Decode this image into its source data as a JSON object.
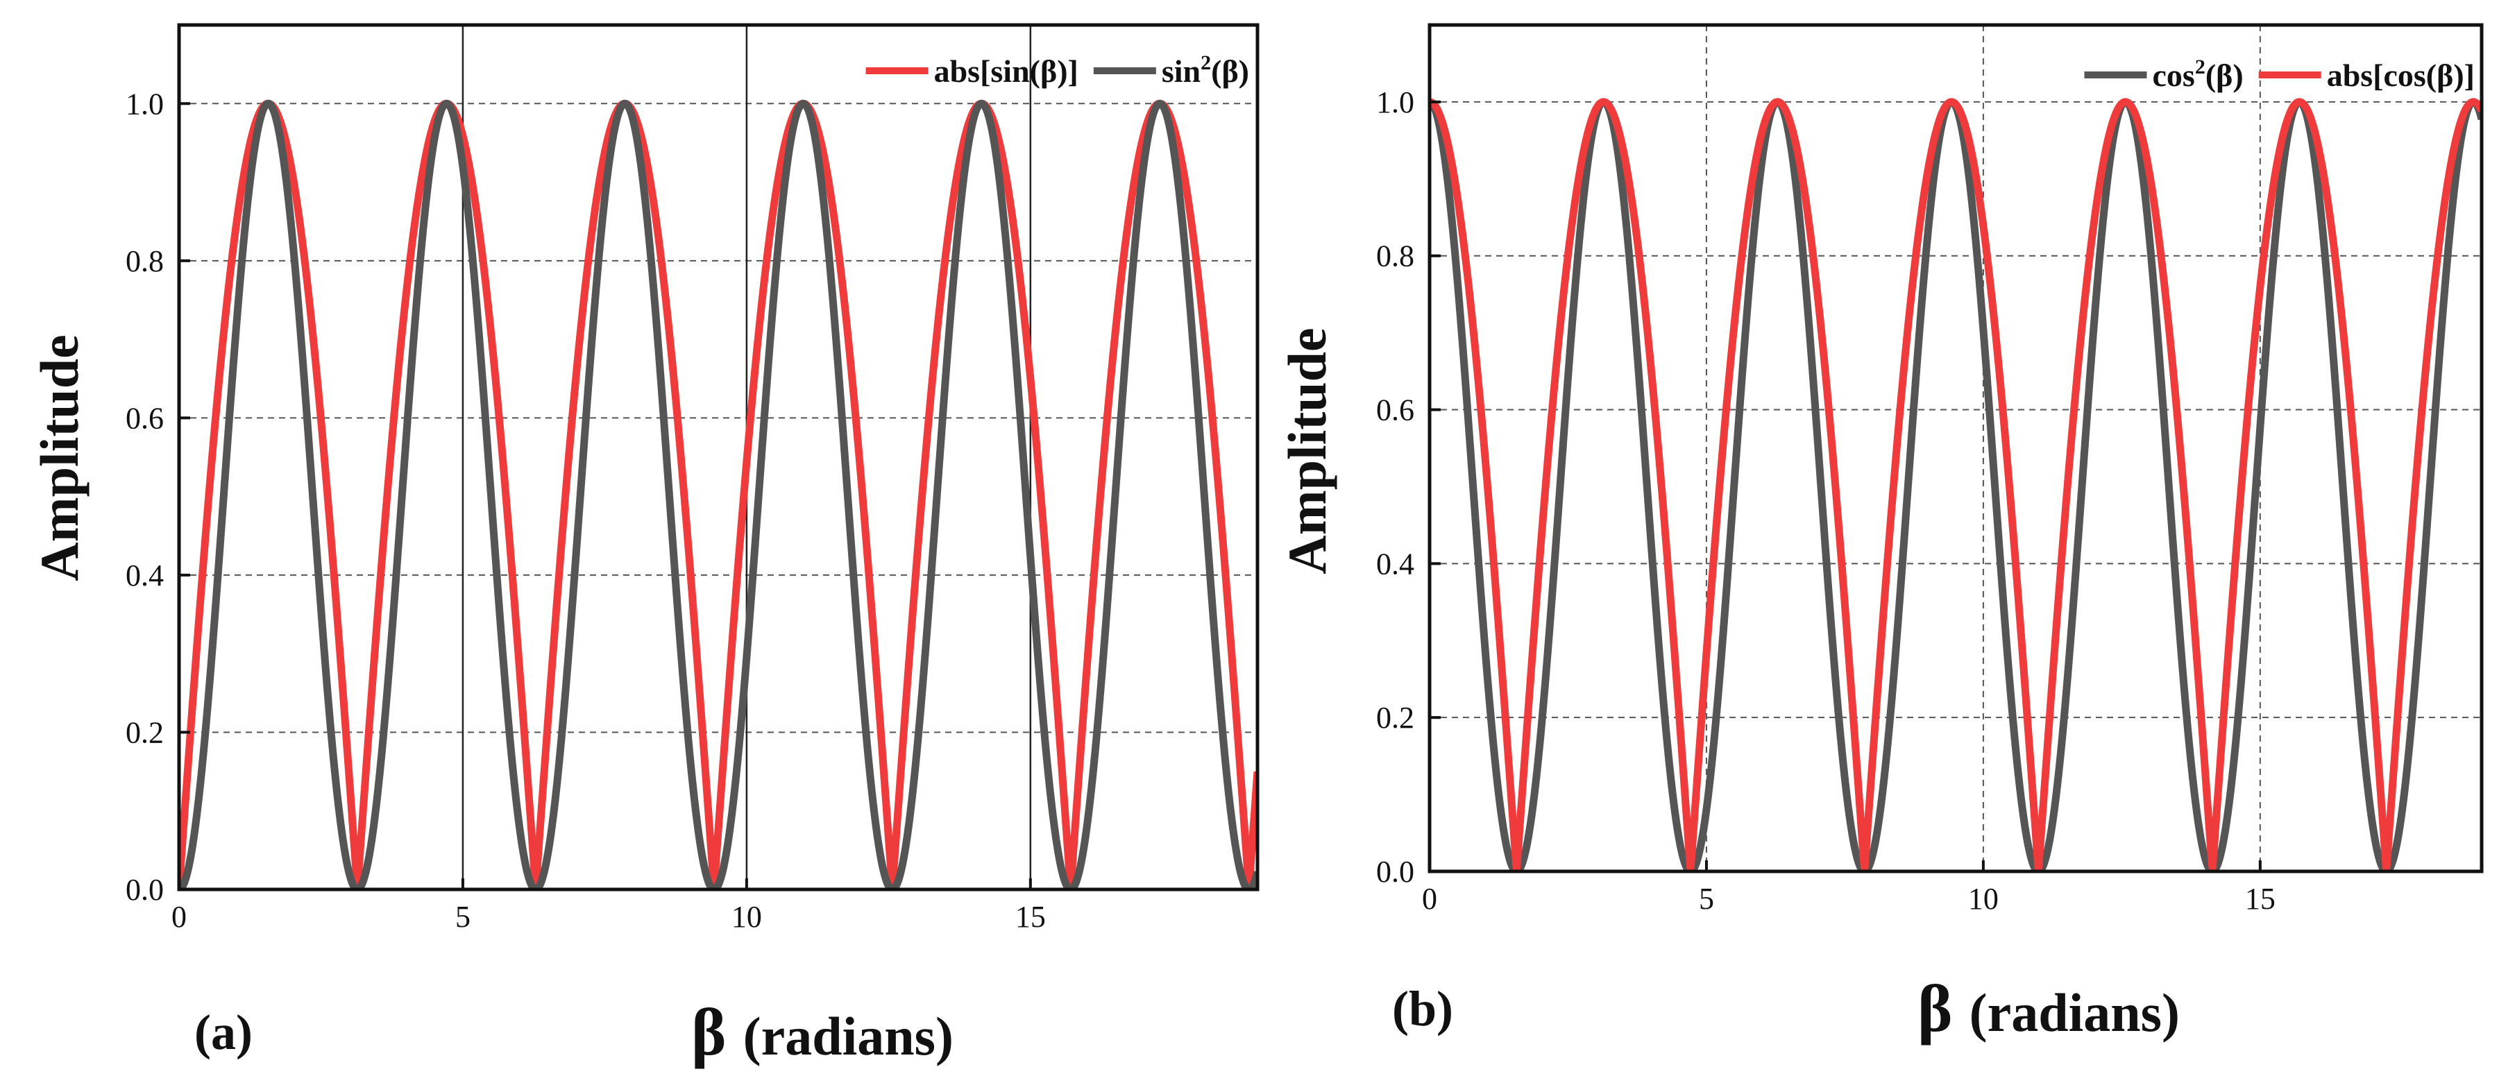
{
  "chart_data": [
    {
      "type": "line",
      "panel_label": "(a)",
      "xlabel_symbol": "β",
      "xlabel_unit": "(radians)",
      "ylabel": "Amplitude",
      "xlim": [
        0,
        19
      ],
      "ylim": [
        0,
        1.1
      ],
      "xticks": [
        0,
        5,
        10,
        15
      ],
      "xtick_labels": [
        "0",
        "5",
        "10",
        "15"
      ],
      "yticks": [
        0.0,
        0.2,
        0.4,
        0.6,
        0.8,
        1.0
      ],
      "ytick_labels": [
        "0.0",
        "0.2",
        "0.4",
        "0.6",
        "0.8",
        "1.0"
      ],
      "grid": "horizontal dashed; vertical lines at x = 5, 10, 15",
      "legend_position": "top-right",
      "series": [
        {
          "name": "abs[sin(β)]",
          "legend_base": "abs[sin(β)]",
          "legend_sup": "",
          "legend_tail": "",
          "function": "abs_sin",
          "color": "#ef3b3b",
          "x": [
            0,
            1.571,
            3.142,
            4.712,
            6.283,
            7.854,
            9.425,
            10.996,
            12.566,
            14.137,
            15.708,
            17.279,
            19.0
          ],
          "values": [
            0,
            1,
            0,
            1,
            0,
            1,
            0,
            1,
            0,
            1,
            0,
            1,
            0.15
          ]
        },
        {
          "name": "sin²(β)",
          "legend_base": "sin",
          "legend_sup": "2",
          "legend_tail": "(β)",
          "function": "sin_sq",
          "color": "#555555",
          "x": [
            0,
            1.571,
            3.142,
            4.712,
            6.283,
            7.854,
            9.425,
            10.996,
            12.566,
            14.137,
            15.708,
            17.279,
            19.0
          ],
          "values": [
            0,
            1,
            0,
            1,
            0,
            1,
            0,
            1,
            0,
            1,
            0,
            1,
            0.02
          ]
        }
      ]
    },
    {
      "type": "line",
      "panel_label": "(b)",
      "xlabel_symbol": "β",
      "xlabel_unit": "(radians)",
      "ylabel": "Amplitude",
      "xlim": [
        0,
        19
      ],
      "ylim": [
        0,
        1.1
      ],
      "xticks": [
        0,
        5,
        10,
        15
      ],
      "xtick_labels": [
        "0",
        "5",
        "10",
        "15"
      ],
      "yticks": [
        0.0,
        0.2,
        0.4,
        0.6,
        0.8,
        1.0
      ],
      "ytick_labels": [
        "0.0",
        "0.2",
        "0.4",
        "0.6",
        "0.8",
        "1.0"
      ],
      "grid": "horizontal dashed; vertical dashed at x = 5, 10, 15",
      "legend_position": "top-right",
      "series": [
        {
          "name": "cos²(β)",
          "legend_base": "cos",
          "legend_sup": "2",
          "legend_tail": "(β)",
          "function": "cos_sq",
          "color": "#555555",
          "x": [
            0,
            1.571,
            3.142,
            4.712,
            6.283,
            7.854,
            9.425,
            10.996,
            12.566,
            14.137,
            15.708,
            17.279,
            19.0
          ],
          "values": [
            1,
            0,
            1,
            0,
            1,
            0,
            1,
            0,
            1,
            0,
            1,
            0,
            0.98
          ]
        },
        {
          "name": "abs[cos(β)]",
          "legend_base": "abs[cos(β)]",
          "legend_sup": "",
          "legend_tail": "",
          "function": "abs_cos",
          "color": "#ef3b3b",
          "x": [
            0,
            1.571,
            3.142,
            4.712,
            6.283,
            7.854,
            9.425,
            10.996,
            12.566,
            14.137,
            15.708,
            17.279,
            19.0
          ],
          "values": [
            1,
            0,
            1,
            0,
            1,
            0,
            1,
            0,
            1,
            0,
            1,
            0,
            0.99
          ]
        }
      ]
    }
  ]
}
